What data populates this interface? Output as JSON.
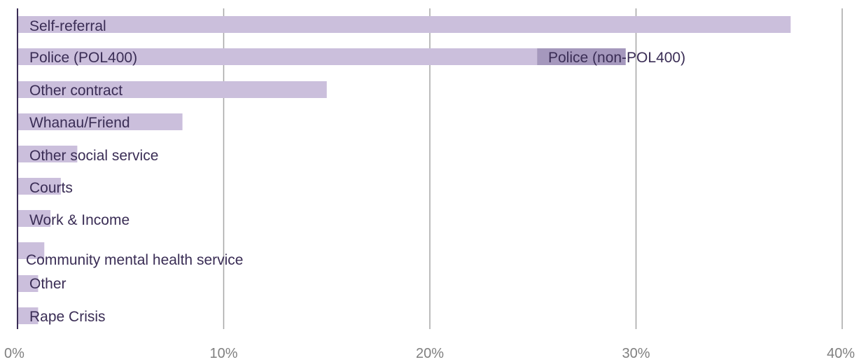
{
  "chart_data": {
    "type": "bar",
    "orientation": "horizontal",
    "xlim": [
      0,
      40
    ],
    "x_ticks": [
      "0%",
      "10%",
      "20%",
      "30%",
      "40%"
    ],
    "grid": "vertical",
    "categories": [
      "Self-referral",
      "Police (POL400)",
      "Other contract",
      "Whanau/Friend",
      "Other social service",
      "Courts",
      "Work & Income",
      "Community mental health service",
      "Other",
      "Rape Crisis"
    ],
    "values": [
      37.5,
      25.2,
      15.0,
      8.0,
      2.9,
      2.1,
      1.6,
      1.3,
      1.0,
      1.0
    ],
    "stacked_segment": {
      "category": "Police (POL400)",
      "label": "Police (non-POL400)",
      "value": 4.3
    },
    "colors": {
      "bar": "#cbbfdc",
      "stacked_bar": "#a598bd",
      "axis": "#3a2d55",
      "grid": "#a6a6a6",
      "text": "#3a2d55",
      "tick_text": "#7f7f7f"
    }
  }
}
